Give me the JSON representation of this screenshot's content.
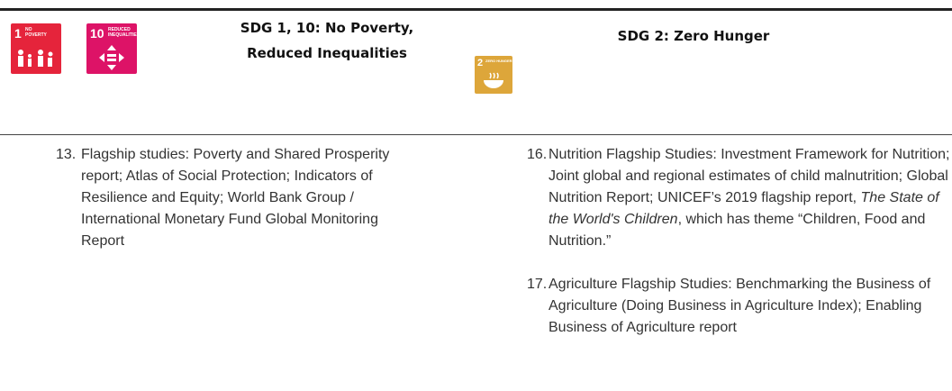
{
  "header": {
    "left": {
      "icons": [
        {
          "number": "1",
          "label": "NO POVERTY"
        },
        {
          "number": "10",
          "label": "REDUCED INEQUALITIES"
        }
      ],
      "title_lines": [
        "SDG 1, 10: No Poverty,",
        "Reduced Inequalities"
      ]
    },
    "right": {
      "icons": [
        {
          "number": "2",
          "label": "ZERO HUNGER"
        }
      ],
      "title_lines": [
        "SDG 2: Zero Hunger"
      ]
    }
  },
  "items": {
    "left": [
      {
        "number": "13.",
        "text": "Flagship studies: Poverty and Shared Prosperity report; Atlas of Social Protection; Indicators of Resilience and Equity; World Bank Group / International Monetary Fund Global Monitoring Report"
      }
    ],
    "right": [
      {
        "number": "16.",
        "parts": [
          " Nutrition Flagship Studies: Investment Framework for Nutrition; Joint global and regional estimates of child malnutrition; Global Nutrition Report; UNICEF’s 2019 flagship report, ",
          "The State of the World's Children",
          ", which has theme “Children, Food and Nutrition.”"
        ]
      },
      {
        "number": "17.",
        "parts": [
          "Agriculture Flagship Studies: Benchmarking the Business of Agriculture (Doing Business in Agriculture Index); Enabling Business of Agriculture report"
        ]
      }
    ]
  }
}
